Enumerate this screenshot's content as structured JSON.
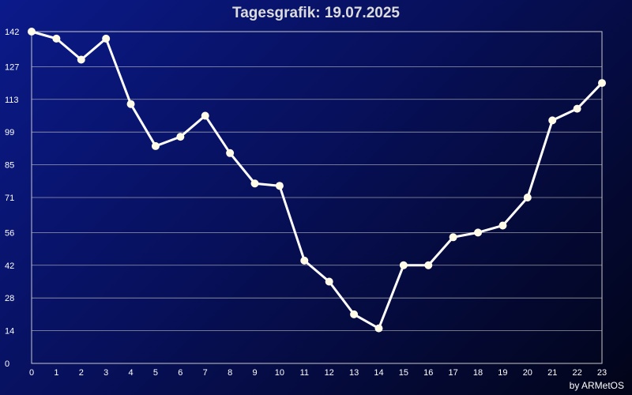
{
  "title": "Tagesgrafik: 19.07.2025",
  "credit": "by ARMetOS",
  "colors": {
    "background_top_left": "#0b1a8a",
    "background_bottom_right": "#020418",
    "line": "#ffffff",
    "marker": "#fffbe6",
    "grid": "#c8c8c8",
    "text": "#ffffff"
  },
  "chart_data": {
    "type": "line",
    "title": "Tagesgrafik: 19.07.2025",
    "xlabel": "",
    "ylabel": "",
    "x": [
      0,
      1,
      2,
      3,
      4,
      5,
      6,
      7,
      8,
      9,
      10,
      11,
      12,
      13,
      14,
      15,
      16,
      17,
      18,
      19,
      20,
      21,
      22,
      23
    ],
    "x_ticks": [
      "0",
      "1",
      "2",
      "3",
      "4",
      "5",
      "6",
      "7",
      "8",
      "9",
      "10",
      "11",
      "12",
      "13",
      "14",
      "15",
      "16",
      "17",
      "18",
      "19",
      "20",
      "21",
      "22",
      "23"
    ],
    "y_ticks": [
      "0",
      "14",
      "28",
      "42",
      "56",
      "71",
      "85",
      "99",
      "113",
      "127",
      "142"
    ],
    "ylim": [
      0,
      142
    ],
    "grid": true,
    "series": [
      {
        "values": [
          142,
          139,
          130,
          139,
          111,
          93,
          97,
          106,
          90,
          77,
          76,
          44,
          35,
          21,
          15,
          42,
          42,
          54,
          56,
          59,
          71,
          104,
          109,
          120
        ]
      }
    ]
  }
}
